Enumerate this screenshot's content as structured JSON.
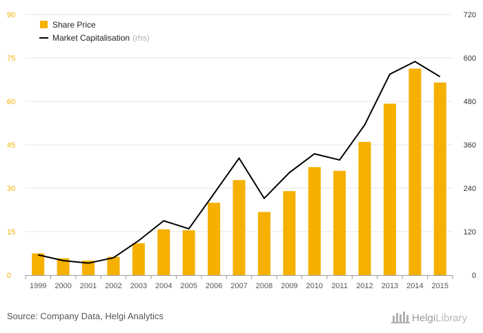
{
  "chart_data": {
    "type": "bar",
    "categories": [
      "1999",
      "2000",
      "2001",
      "2002",
      "2003",
      "2004",
      "2005",
      "2006",
      "2007",
      "2008",
      "2009",
      "2010",
      "2011",
      "2012",
      "2013",
      "2014",
      "2015"
    ],
    "series": [
      {
        "name": "Share Price",
        "type": "bar",
        "axis": "left",
        "color": "#f5b000",
        "values": [
          7.5,
          5.8,
          5.0,
          6.3,
          11.0,
          15.8,
          15.5,
          25.0,
          32.8,
          21.8,
          29.0,
          37.3,
          36.0,
          46.0,
          59.2,
          71.3,
          66.5
        ]
      },
      {
        "name": "Market Capitalisation",
        "suffix": "(rhs)",
        "type": "line",
        "axis": "right",
        "color": "#000000",
        "values": [
          56,
          40,
          33,
          48,
          95,
          150,
          128,
          225,
          323,
          212,
          283,
          335,
          318,
          415,
          555,
          590,
          548
        ]
      }
    ],
    "y_left": {
      "min": 0,
      "max": 90,
      "ticks": [
        0,
        15,
        30,
        45,
        60,
        75,
        90
      ]
    },
    "y_right": {
      "min": 0,
      "max": 720,
      "ticks": [
        0,
        120,
        240,
        360,
        480,
        600,
        720
      ]
    },
    "grid": true,
    "legend_position": "top-left"
  },
  "footer": {
    "source": "Source: Company Data, Helgi Analytics",
    "logo_main": "Helgi",
    "logo_light": "Library"
  }
}
